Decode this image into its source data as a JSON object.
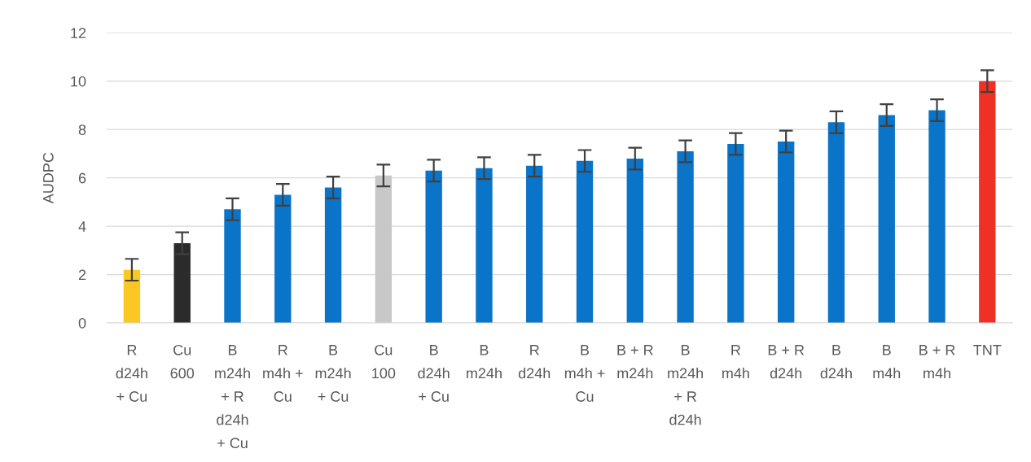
{
  "chart_data": {
    "type": "bar",
    "ylabel": "AUDPC",
    "categories": [
      "R\nd24h\n+ Cu",
      "Cu\n600",
      "B\nm24h\n+ R\nd24h\n+ Cu",
      "R\nm4h +\nCu",
      "B\nm24h\n+ Cu",
      "Cu\n100",
      "B\nd24h\n+ Cu",
      "B\nm24h",
      "R\nd24h",
      "B\nm4h +\nCu",
      "B + R\nm24h",
      "B\nm24h\n+ R\nd24h",
      "R\nm4h",
      "B + R\nd24h",
      "B\nd24h",
      "B\nm4h",
      "B + R\nm4h",
      "TNT"
    ],
    "values": [
      2.2,
      3.3,
      4.7,
      5.3,
      5.6,
      6.1,
      6.3,
      6.4,
      6.5,
      6.7,
      6.8,
      7.1,
      7.4,
      7.5,
      8.3,
      8.6,
      8.8,
      10.0
    ],
    "errors": [
      0.45,
      0.45,
      0.45,
      0.45,
      0.45,
      0.45,
      0.45,
      0.45,
      0.45,
      0.45,
      0.45,
      0.45,
      0.45,
      0.45,
      0.45,
      0.45,
      0.45,
      0.45
    ],
    "colors": [
      "#fac723",
      "#2b2b2b",
      "#0a74c8",
      "#0a74c8",
      "#0a74c8",
      "#c8c8c8",
      "#0a74c8",
      "#0a74c8",
      "#0a74c8",
      "#0a74c8",
      "#0a74c8",
      "#0a74c8",
      "#0a74c8",
      "#0a74c8",
      "#0a74c8",
      "#0a74c8",
      "#0a74c8",
      "#ee3124"
    ],
    "ylim": [
      0,
      12
    ],
    "yticks": [
      0,
      2,
      4,
      6,
      8,
      10,
      12
    ],
    "grid": "y"
  }
}
